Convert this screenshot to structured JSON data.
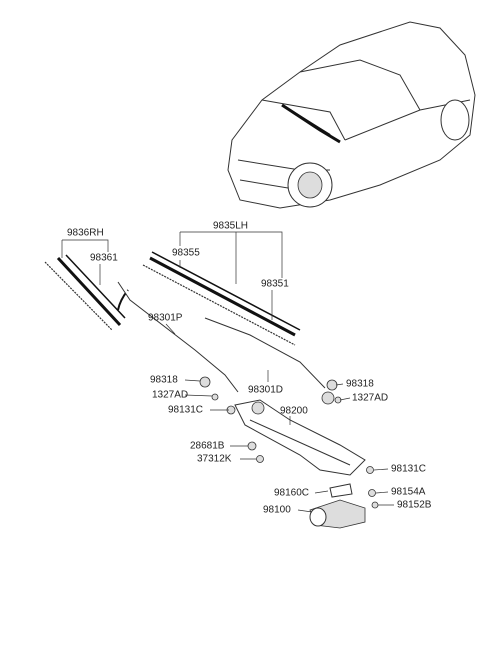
{
  "labels": [
    {
      "text": "9836RH"
    },
    {
      "text": "98361"
    },
    {
      "text": "9835LH"
    },
    {
      "text": "98355"
    },
    {
      "text": "98351"
    },
    {
      "text": "98301P"
    },
    {
      "text": "98318"
    },
    {
      "text": "1327AD"
    },
    {
      "text": "98131C"
    },
    {
      "text": "98301D"
    },
    {
      "text": "98318"
    },
    {
      "text": "1327AD"
    },
    {
      "text": "98200"
    },
    {
      "text": "28681B"
    },
    {
      "text": "37312K"
    },
    {
      "text": "98131C"
    },
    {
      "text": "98160C"
    },
    {
      "text": "98154A"
    },
    {
      "text": "98100"
    },
    {
      "text": "98152B"
    }
  ]
}
